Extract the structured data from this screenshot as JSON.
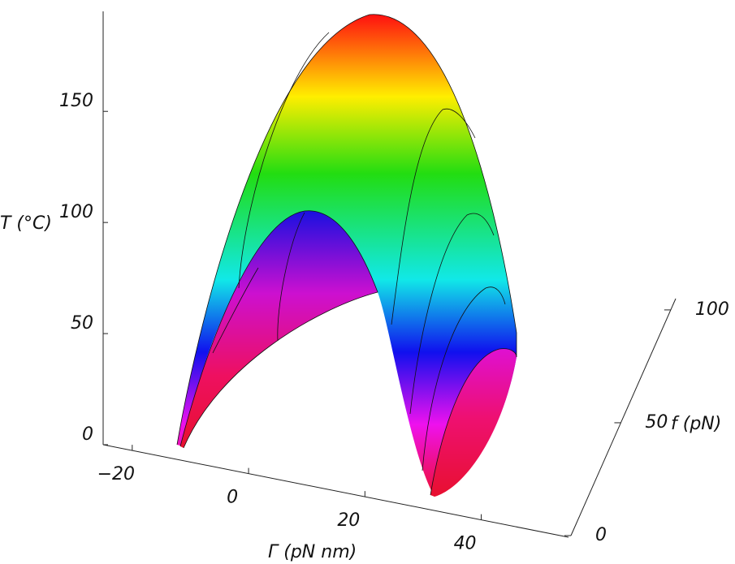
{
  "chart_data": {
    "type": "surface",
    "x_label": "Γ (pN nm)",
    "y_label": "f (pN)",
    "z_label": "T (°C)",
    "xlim": [
      -25,
      55
    ],
    "xticks": [
      {
        "value": -20,
        "label": "−20"
      },
      0,
      20,
      40
    ],
    "ylim": [
      0,
      105
    ],
    "yticks": [
      0,
      50,
      100
    ],
    "zlim": [
      0,
      195
    ],
    "zticks": [
      0,
      50,
      100,
      150
    ]
  }
}
